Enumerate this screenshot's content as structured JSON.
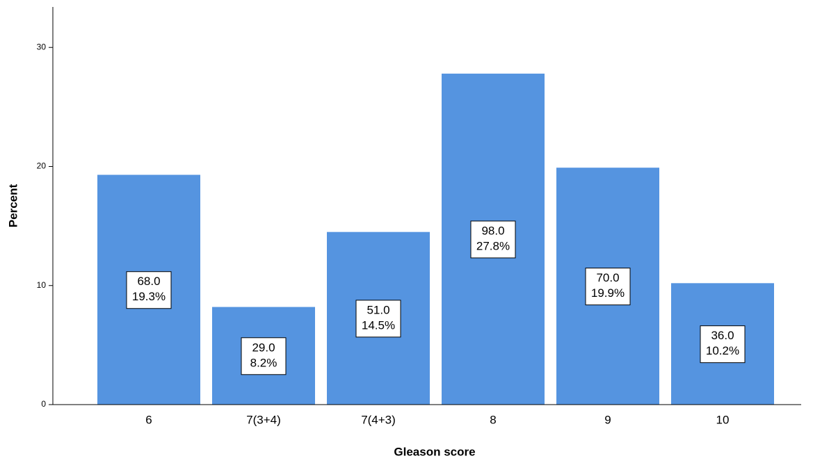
{
  "chart_data": {
    "type": "bar",
    "x_label": "Gleason score",
    "y_label": "Percent",
    "categories": [
      "6",
      "7(3+4)",
      "7(4+3)",
      "8",
      "9",
      "10"
    ],
    "values": [
      19.3,
      8.2,
      14.5,
      27.8,
      19.9,
      10.2
    ],
    "value_labels": [
      "19.3%",
      "8.2%",
      "14.5%",
      "27.8%",
      "19.9%",
      "10.2%"
    ],
    "count_labels": [
      "68.0",
      "29.0",
      "51.0",
      "98.0",
      "70.0",
      "36.0"
    ],
    "color": "#5594e0",
    "ylim": [
      0,
      33.4
    ],
    "yticks": [
      0,
      10,
      20,
      30
    ],
    "grid": false
  }
}
